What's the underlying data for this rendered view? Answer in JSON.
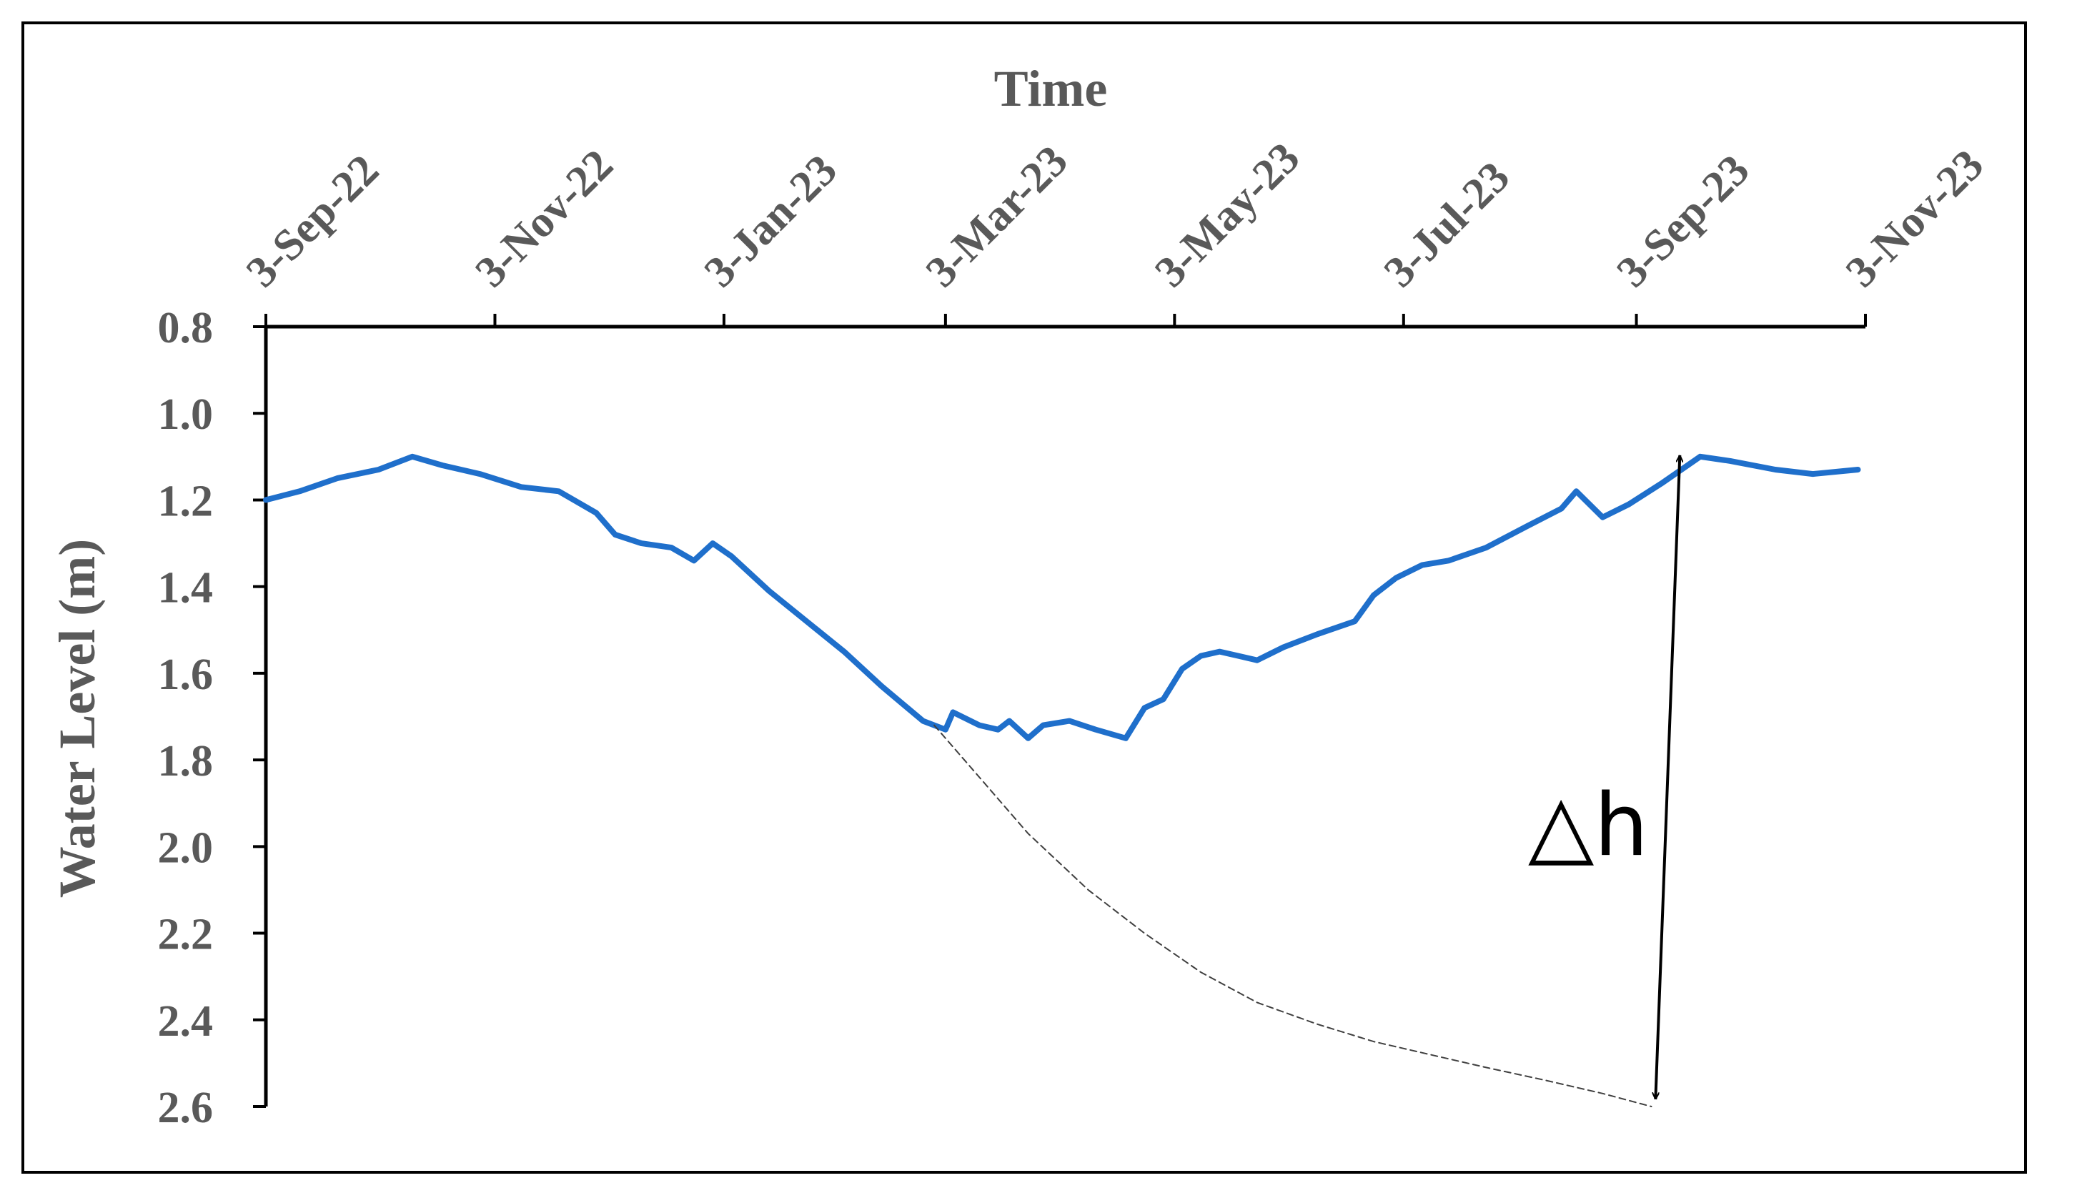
{
  "chart_data": {
    "type": "line",
    "title": "",
    "xlabel": "Time",
    "ylabel": "Water Level (m)",
    "x_axis_position": "top",
    "y_axis_inverted": true,
    "ylim": [
      0.8,
      2.6
    ],
    "xlim": [
      "2022-09-03",
      "2023-11-03"
    ],
    "x_ticks": [
      "2022-09-03",
      "2022-11-03",
      "2023-01-03",
      "2023-03-03",
      "2023-05-03",
      "2023-07-03",
      "2023-09-03",
      "2023-11-03"
    ],
    "x_tick_labels": [
      "3-Sep-22",
      "3-Nov-22",
      "3-Jan-23",
      "3-Mar-23",
      "3-May-23",
      "3-Jul-23",
      "3-Sep-23",
      "3-Nov-23"
    ],
    "y_ticks": [
      0.8,
      1.0,
      1.2,
      1.4,
      1.6,
      1.8,
      2.0,
      2.2,
      2.4,
      2.6
    ],
    "y_tick_labels": [
      "0.8",
      "1.0",
      "1.2",
      "1.4",
      "1.6",
      "1.8",
      "2.0",
      "2.2",
      "2.4",
      "2.6"
    ],
    "grid": false,
    "legend": "none",
    "series": [
      {
        "color": "#1F6FCB",
        "style": "solid",
        "x": [
          "2022-09-03",
          "2022-09-12",
          "2022-09-22",
          "2022-10-03",
          "2022-10-12",
          "2022-10-20",
          "2022-10-30",
          "2022-11-10",
          "2022-11-20",
          "2022-11-30",
          "2022-12-05",
          "2022-12-12",
          "2022-12-20",
          "2022-12-26",
          "2022-12-31",
          "2023-01-05",
          "2023-01-15",
          "2023-01-25",
          "2023-02-04",
          "2023-02-14",
          "2023-02-25",
          "2023-03-03",
          "2023-03-05",
          "2023-03-12",
          "2023-03-17",
          "2023-03-20",
          "2023-03-25",
          "2023-03-29",
          "2023-04-05",
          "2023-04-12",
          "2023-04-20",
          "2023-04-25",
          "2023-04-30",
          "2023-05-05",
          "2023-05-10",
          "2023-05-15",
          "2023-05-20",
          "2023-05-25",
          "2023-06-01",
          "2023-06-10",
          "2023-06-20",
          "2023-06-25",
          "2023-07-01",
          "2023-07-08",
          "2023-07-15",
          "2023-07-25",
          "2023-08-05",
          "2023-08-14",
          "2023-08-18",
          "2023-08-25",
          "2023-09-01",
          "2023-09-10",
          "2023-09-20",
          "2023-09-28",
          "2023-10-10",
          "2023-10-20",
          "2023-11-01"
        ],
        "y": [
          1.2,
          1.18,
          1.15,
          1.13,
          1.1,
          1.12,
          1.14,
          1.17,
          1.18,
          1.23,
          1.28,
          1.3,
          1.31,
          1.34,
          1.3,
          1.33,
          1.41,
          1.48,
          1.55,
          1.63,
          1.71,
          1.73,
          1.69,
          1.72,
          1.73,
          1.71,
          1.75,
          1.72,
          1.71,
          1.73,
          1.75,
          1.68,
          1.66,
          1.59,
          1.56,
          1.55,
          1.56,
          1.57,
          1.54,
          1.51,
          1.48,
          1.42,
          1.38,
          1.35,
          1.34,
          1.31,
          1.26,
          1.22,
          1.18,
          1.24,
          1.21,
          1.16,
          1.1,
          1.11,
          1.13,
          1.14,
          1.13
        ]
      },
      {
        "color": "#404040",
        "style": "dashed",
        "x": [
          "2023-02-28",
          "2023-03-10",
          "2023-03-25",
          "2023-04-10",
          "2023-04-25",
          "2023-05-10",
          "2023-05-25",
          "2023-06-10",
          "2023-06-25",
          "2023-07-10",
          "2023-07-25",
          "2023-08-10",
          "2023-08-25",
          "2023-09-07"
        ],
        "y": [
          1.72,
          1.82,
          1.97,
          2.1,
          2.2,
          2.29,
          2.36,
          2.41,
          2.45,
          2.48,
          2.51,
          2.54,
          2.57,
          2.6
        ]
      }
    ],
    "annotation": {
      "label": "△h",
      "x": "2023-09-10",
      "from_y": 1.09,
      "to_y": 2.6
    }
  }
}
